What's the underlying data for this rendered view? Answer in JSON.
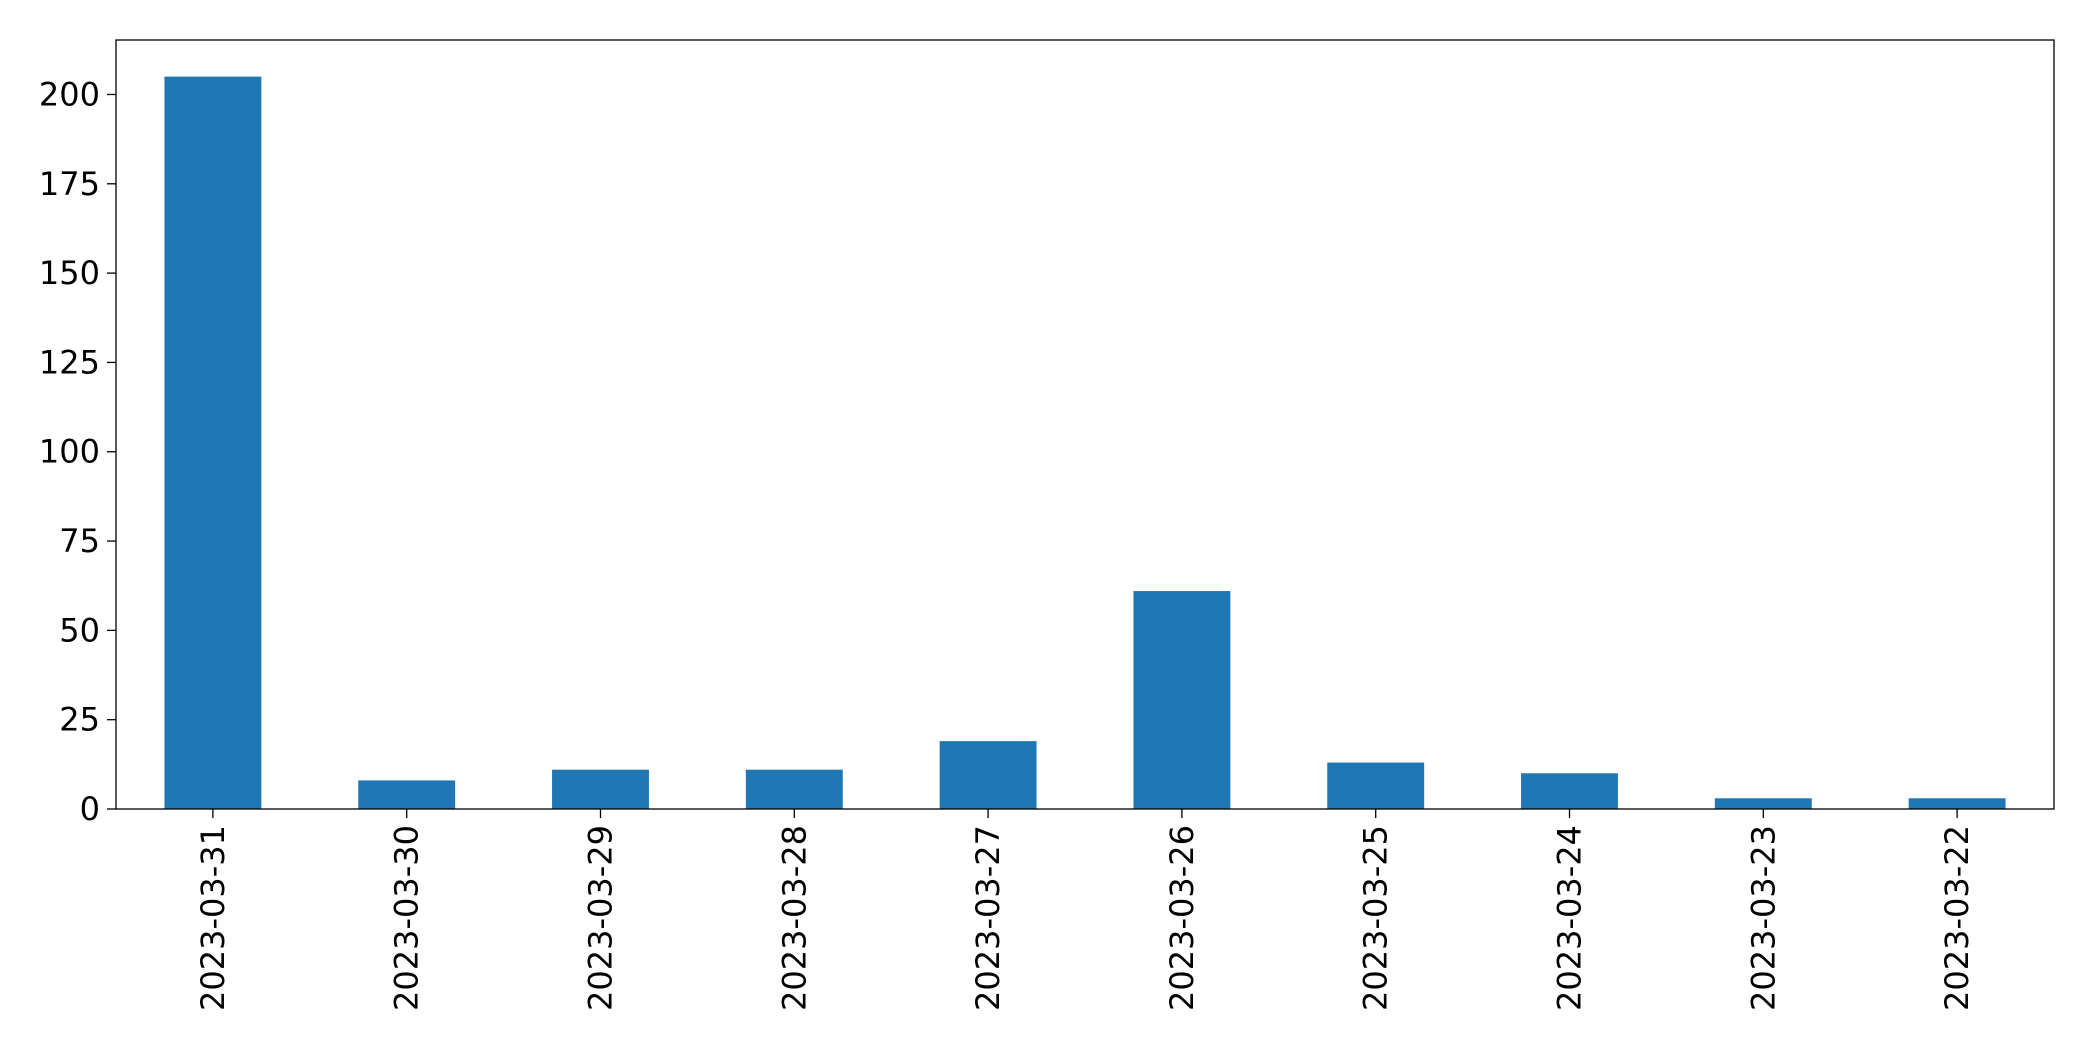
{
  "chart_data": {
    "type": "bar",
    "categories": [
      "2023-03-31",
      "2023-03-30",
      "2023-03-29",
      "2023-03-28",
      "2023-03-27",
      "2023-03-26",
      "2023-03-25",
      "2023-03-24",
      "2023-03-23",
      "2023-03-22"
    ],
    "values": [
      205,
      8,
      11,
      11,
      19,
      61,
      13,
      10,
      3,
      3
    ],
    "color": "#1f77b4",
    "ylim": [
      0,
      215.25
    ],
    "yticks": [
      0,
      25,
      50,
      75,
      100,
      125,
      150,
      175,
      200
    ],
    "grid": false
  }
}
